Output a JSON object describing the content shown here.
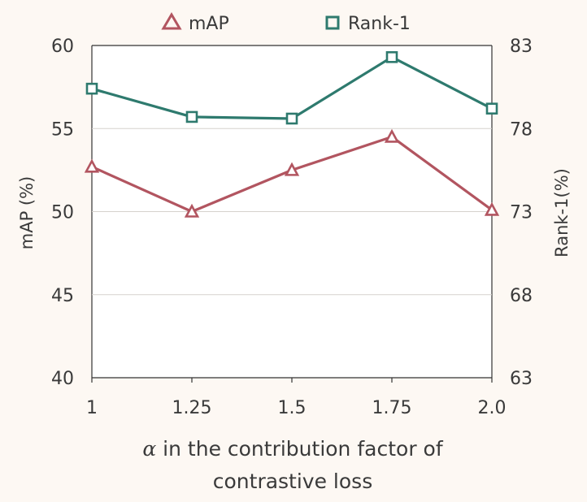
{
  "chart_data": {
    "type": "line",
    "categories": [
      "1",
      "1.25",
      "1.5",
      "1.75",
      "2.0"
    ],
    "series": [
      {
        "name": "mAP",
        "axis": "left",
        "marker": "triangle",
        "color": "#b25560",
        "values": [
          52.7,
          50.0,
          52.5,
          54.5,
          50.1
        ]
      },
      {
        "name": "Rank-1",
        "axis": "right",
        "marker": "square",
        "color": "#2e7a6e",
        "values": [
          80.4,
          78.7,
          78.6,
          82.3,
          79.2
        ]
      }
    ],
    "ylabel_left": "mAP (%)",
    "ylabel_right": "Rank-1(%)",
    "ylim_left": [
      40,
      60
    ],
    "ylim_right": [
      63,
      83
    ],
    "yticks_left": [
      "40",
      "45",
      "50",
      "55",
      "60"
    ],
    "yticks_right": [
      "63",
      "68",
      "73",
      "78",
      "83"
    ],
    "xlabel_symbol": "α",
    "xlabel_line1": " in the contribution factor of",
    "xlabel_line2": "contrastive loss",
    "grid": "horizontal",
    "legend_position": "top-center"
  }
}
